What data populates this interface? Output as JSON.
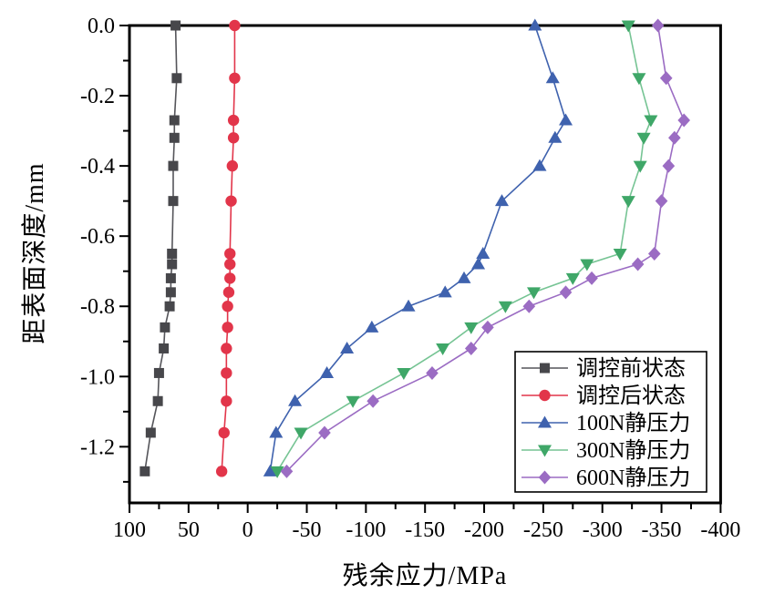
{
  "chart_data": {
    "type": "line",
    "title": "",
    "xlabel": "残余应力/MPa",
    "ylabel": "距表面深度/mm",
    "x_axis": {
      "range": [
        100,
        -400
      ],
      "reversed": true,
      "major_tick_step": 50,
      "minor_tick_step": 25,
      "tick_labels": [
        "100",
        "50",
        "0",
        "-50",
        "-100",
        "-150",
        "-200",
        "-250",
        "-300",
        "-350",
        "-400"
      ]
    },
    "y_axis": {
      "range": [
        0,
        -1.36
      ],
      "major_tick_step": 0.2,
      "minor_tick_step": 0.1,
      "tick_labels": [
        "0.0",
        "-0.2",
        "-0.4",
        "-0.6",
        "-0.8",
        "-1.0",
        "-1.2"
      ]
    },
    "depth_mm": [
      0,
      -0.15,
      -0.27,
      -0.32,
      -0.4,
      -0.5,
      -0.65,
      -0.68,
      -0.72,
      -0.76,
      -0.8,
      -0.86,
      -0.92,
      -0.99,
      -1.07,
      -1.16,
      -1.27
    ],
    "series": [
      {
        "name": "调控前状态",
        "marker": "square",
        "color": "#47474b",
        "line_color": "#55555a",
        "stress_MPa": [
          61,
          60,
          62,
          62,
          63,
          63,
          64,
          64,
          65,
          65,
          66,
          70,
          71,
          75,
          76,
          82,
          87
        ]
      },
      {
        "name": "调控后状态",
        "marker": "circle",
        "color": "#e2354a",
        "line_color": "#e2354a",
        "stress_MPa": [
          11,
          11,
          12,
          12,
          13,
          14,
          15,
          15,
          15,
          16,
          17,
          17,
          18,
          18,
          18,
          20,
          22
        ]
      },
      {
        "name": "100N静压力",
        "marker": "triangle-up",
        "color": "#3f62ae",
        "line_color": "#3f62ae",
        "stress_MPa": [
          -243,
          -258,
          -269,
          -260,
          -247,
          -215,
          -199,
          -195,
          -183,
          -167,
          -136,
          -105,
          -84,
          -67,
          -40,
          -24,
          -19
        ]
      },
      {
        "name": "300N静压力",
        "marker": "triangle-down",
        "color": "#3fa768",
        "line_color": "#76c494",
        "stress_MPa": [
          -322,
          -331,
          -341,
          -335,
          -332,
          -322,
          -315,
          -287,
          -275,
          -242,
          -218,
          -189,
          -165,
          -132,
          -89,
          -45,
          -25
        ]
      },
      {
        "name": "600N静压力",
        "marker": "diamond",
        "color": "#9b6cc3",
        "line_color": "#9b6cc3",
        "stress_MPa": [
          -347,
          -354,
          -369,
          -361,
          -356,
          -350,
          -344,
          -330,
          -291,
          -269,
          -238,
          -203,
          -189,
          -156,
          -106,
          -65,
          -33
        ]
      }
    ],
    "legend": {
      "position": "inside middle-right",
      "items": [
        "调控前状态",
        "调控后状态",
        "100N静压力",
        "300N静压力",
        "600N静压力"
      ]
    },
    "grid": false,
    "frame": true,
    "colors": {
      "axis": "#000000",
      "background": "#ffffff"
    }
  }
}
